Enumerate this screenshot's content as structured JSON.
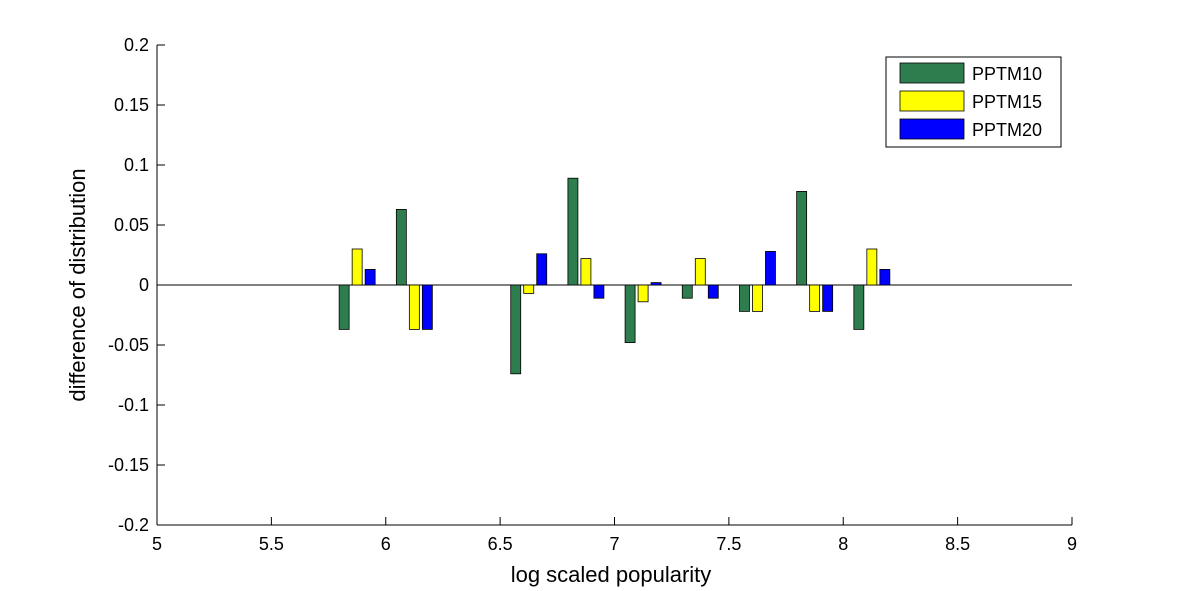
{
  "chart_data": {
    "type": "bar",
    "xlabel": "log scaled popularity",
    "ylabel": "difference of distribution",
    "xlim": [
      5,
      9
    ],
    "ylim": [
      -0.2,
      0.2
    ],
    "xticks": [
      5,
      5.5,
      6,
      6.5,
      7,
      7.5,
      8,
      8.5,
      9
    ],
    "xtick_labels": [
      "5",
      "5.5",
      "6",
      "6.5",
      "7",
      "7.5",
      "8",
      "8.5",
      "9"
    ],
    "yticks": [
      -0.2,
      -0.15,
      -0.1,
      -0.05,
      0,
      0.05,
      0.1,
      0.15,
      0.2
    ],
    "ytick_labels": [
      "-0.2",
      "-0.15",
      "-0.1",
      "-0.05",
      "0",
      "0.05",
      "0.1",
      "0.15",
      "0.2"
    ],
    "grid": false,
    "legend_position": "top-right",
    "x": [
      5.875,
      6.125,
      6.625,
      6.875,
      7.125,
      7.375,
      7.625,
      7.875,
      8.125
    ],
    "series": [
      {
        "name": "PPTM10",
        "color": "#2e7d4f",
        "values": [
          -0.037,
          0.063,
          -0.074,
          0.089,
          -0.048,
          -0.011,
          -0.022,
          0.078,
          -0.037
        ]
      },
      {
        "name": "PPTM15",
        "color": "#ffff00",
        "values": [
          0.03,
          -0.037,
          -0.007,
          0.022,
          -0.014,
          0.022,
          -0.022,
          -0.022,
          0.03
        ]
      },
      {
        "name": "PPTM20",
        "color": "#0000ff",
        "values": [
          0.013,
          -0.037,
          0.026,
          -0.011,
          0.002,
          -0.011,
          0.028,
          -0.022,
          0.013
        ]
      }
    ]
  }
}
